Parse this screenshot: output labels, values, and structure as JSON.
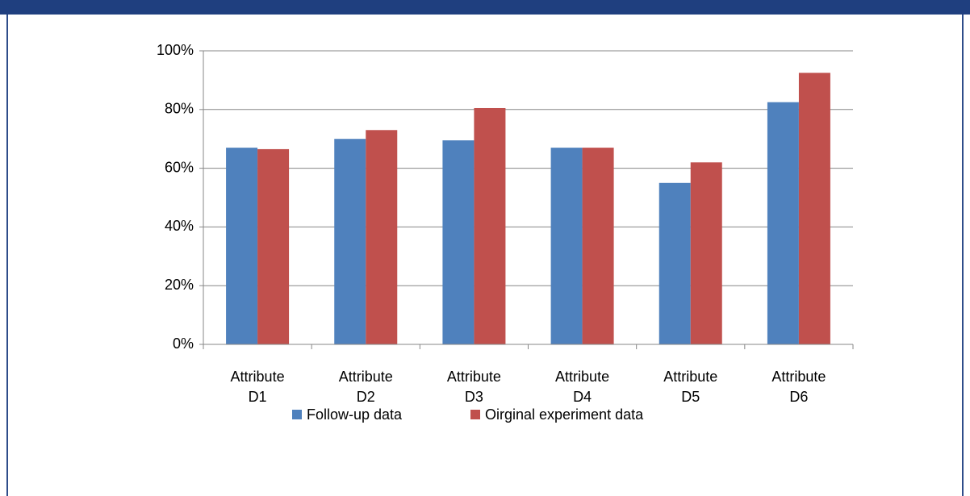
{
  "chart_data": {
    "type": "bar",
    "categories": [
      "Attribute D1",
      "Attribute D2",
      "Attribute D3",
      "Attribute D4",
      "Attribute D5",
      "Attribute D6"
    ],
    "series": [
      {
        "name": "Follow-up data",
        "color": "#4f81bd",
        "values": [
          67,
          70,
          69.5,
          67,
          55,
          82.5
        ]
      },
      {
        "name": "Oirginal experiment data",
        "color": "#c0504d",
        "values": [
          66.5,
          73,
          80.5,
          67,
          62,
          92.5
        ]
      }
    ],
    "ylim": [
      0,
      100
    ],
    "yticks": [
      {
        "value": 0,
        "label": "0%"
      },
      {
        "value": 20,
        "label": "20%"
      },
      {
        "value": 40,
        "label": "40%"
      },
      {
        "value": 60,
        "label": "60%"
      },
      {
        "value": 80,
        "label": "80%"
      },
      {
        "value": 100,
        "label": "100%"
      }
    ],
    "grid": true,
    "legend": "bottom"
  }
}
